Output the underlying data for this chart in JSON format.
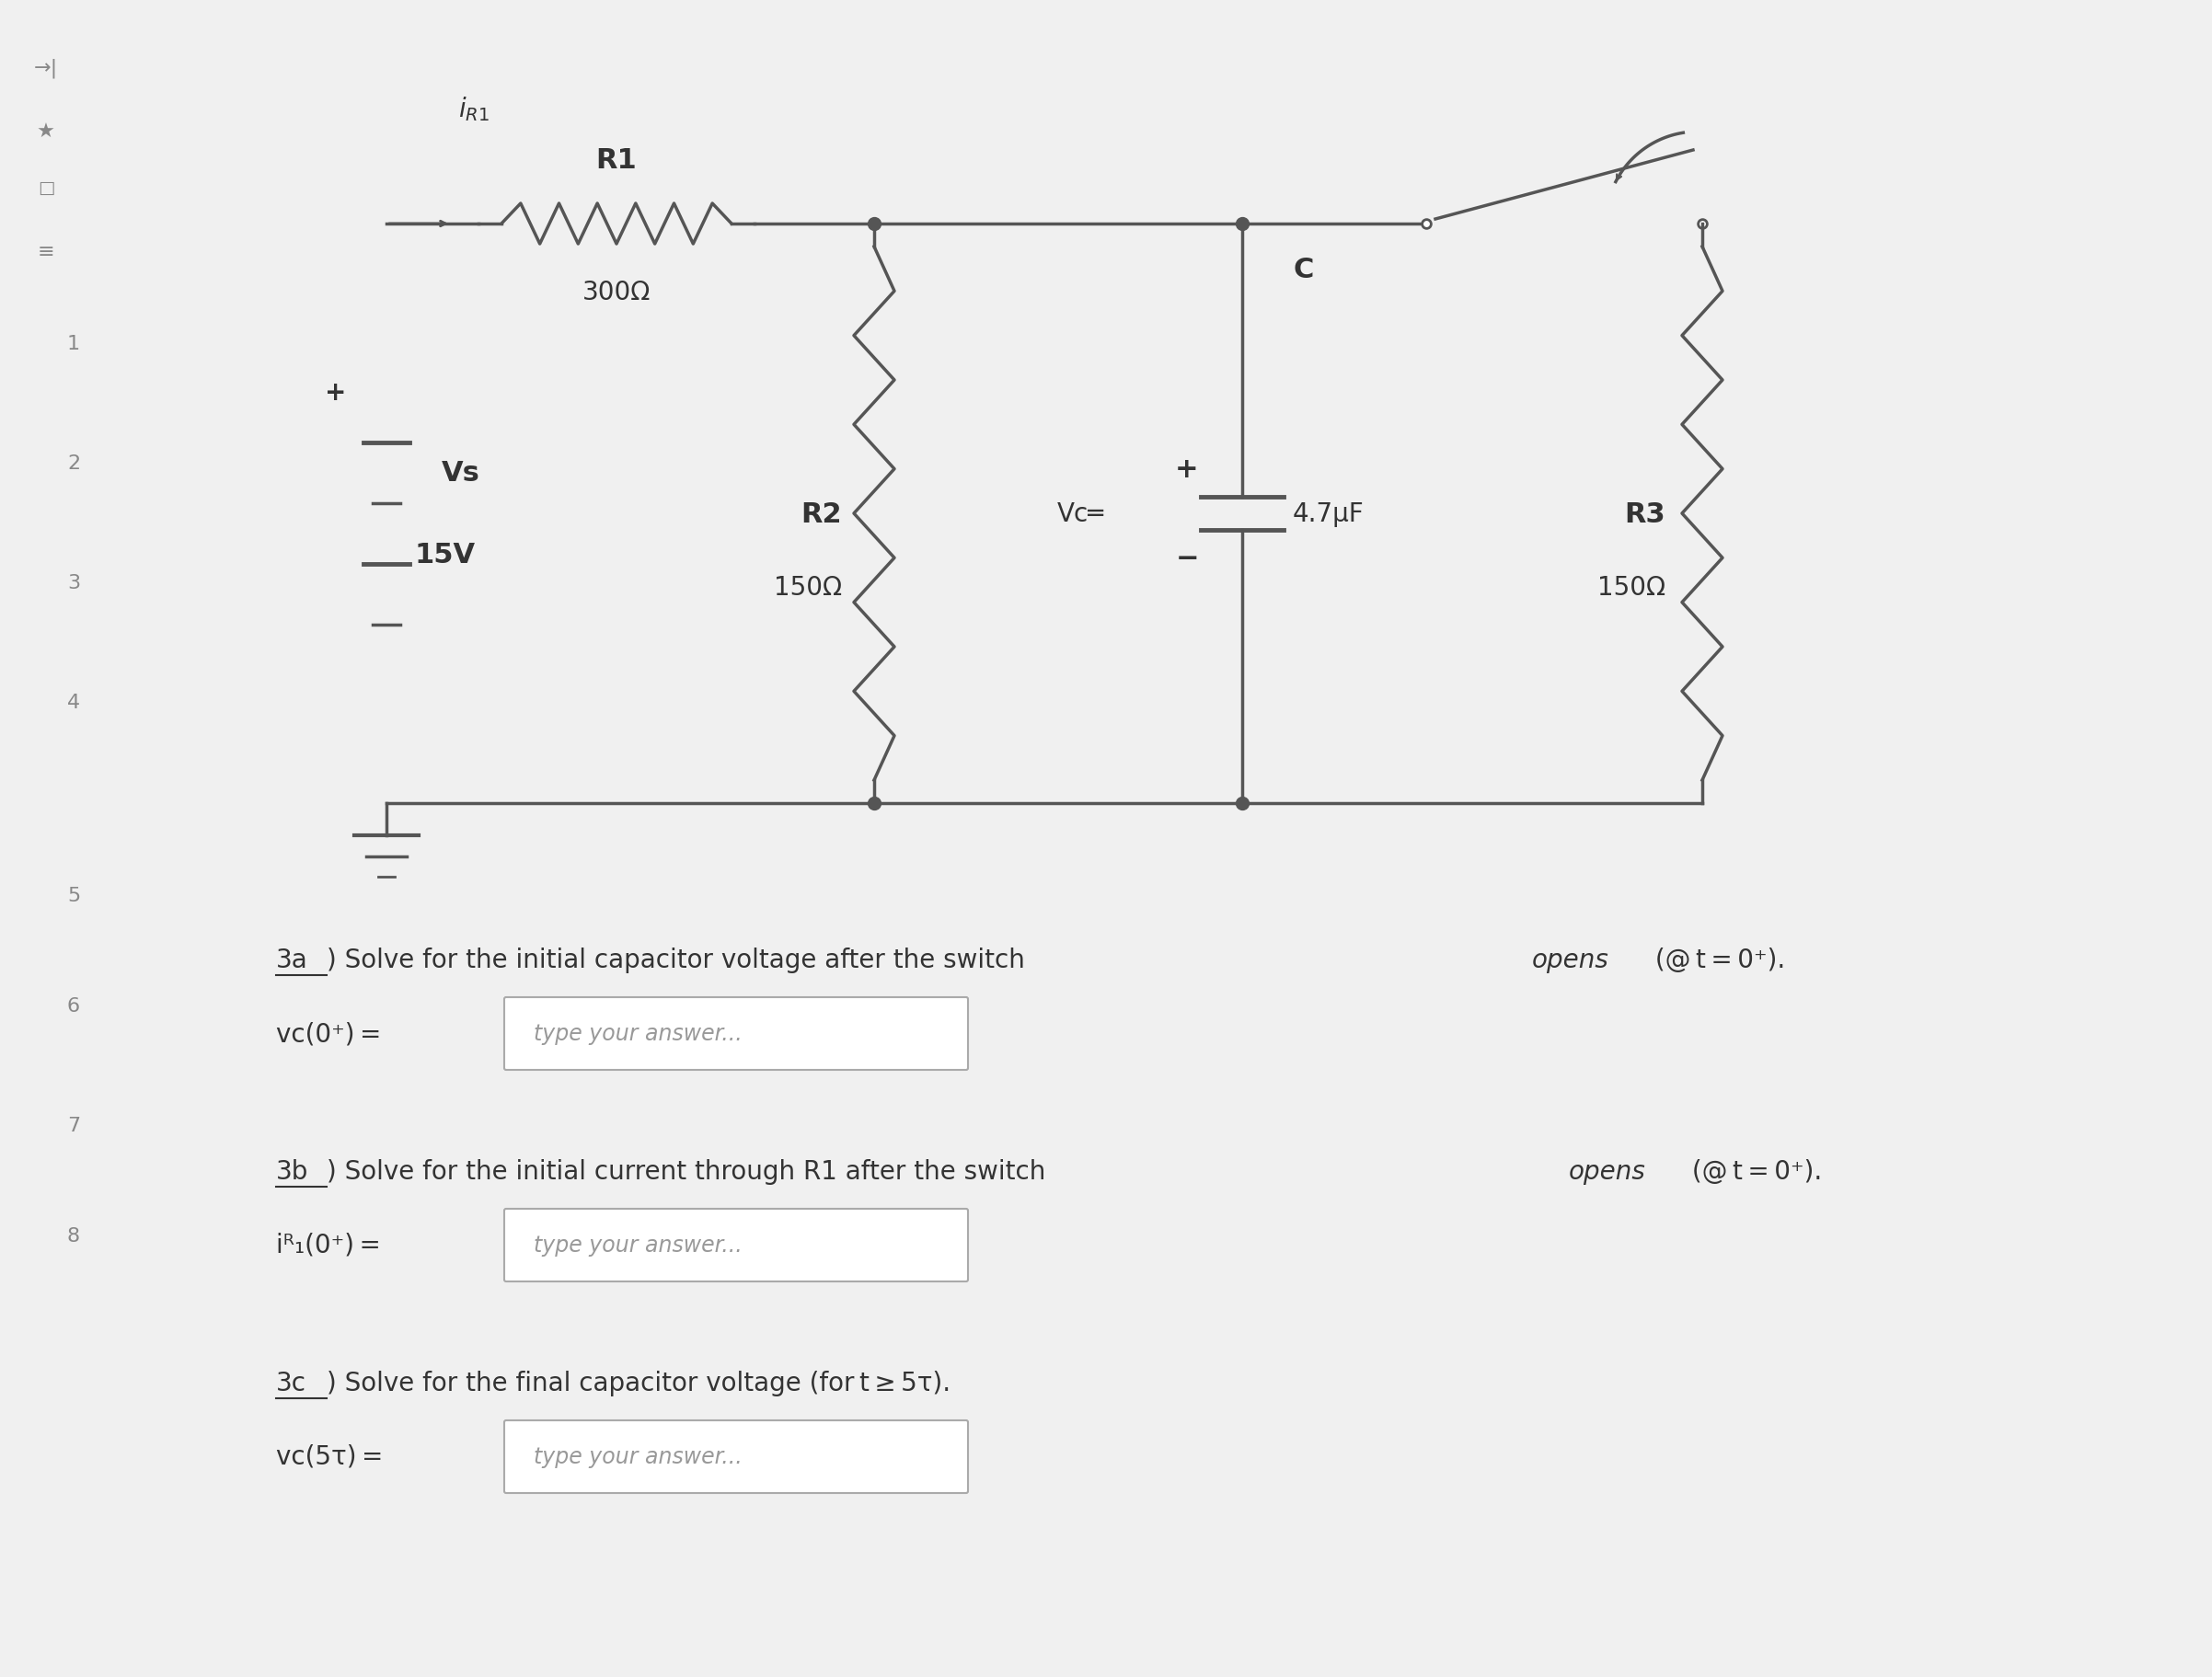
{
  "bg_color": "#f0f0f0",
  "circuit": {
    "vs_label": "Vs",
    "vs_value": "15V",
    "r1_label": "R1",
    "r1_value": "300Ω",
    "r2_label": "R2",
    "r2_value": "150Ω",
    "r3_label": "R3",
    "r3_value": "150Ω",
    "c_label": "C",
    "c_value": "4.7μF",
    "vc_label": "Vc",
    "ir1_label": "i₁",
    "ir1_sub": "R1"
  },
  "questions": {
    "q3a_prefix": "3a",
    "q3a_text": ") Solve for the initial capacitor voltage after the switch ",
    "q3a_italic": "opens",
    "q3a_suffix": " (@ t = 0⁺).",
    "q3a_var": "vᴄ(0⁺) =",
    "q3a_placeholder": "type your answer...",
    "q3b_prefix": "3b",
    "q3b_text": ") Solve for the initial current through R1 after the switch ",
    "q3b_italic": "opens",
    "q3b_suffix": " (@ t = 0⁺).",
    "q3b_var": "iᴿ₁(0⁺) =",
    "q3b_placeholder": "type your answer...",
    "q3c_prefix": "3c",
    "q3c_text": ") Solve for the final capacitor voltage (for t ≥ 5τ).",
    "q3c_var": "vᴄ(5τ) =",
    "q3c_placeholder": "type your answer..."
  },
  "text_color": "#333333",
  "line_color": "#555555",
  "box_color": "#cccccc"
}
